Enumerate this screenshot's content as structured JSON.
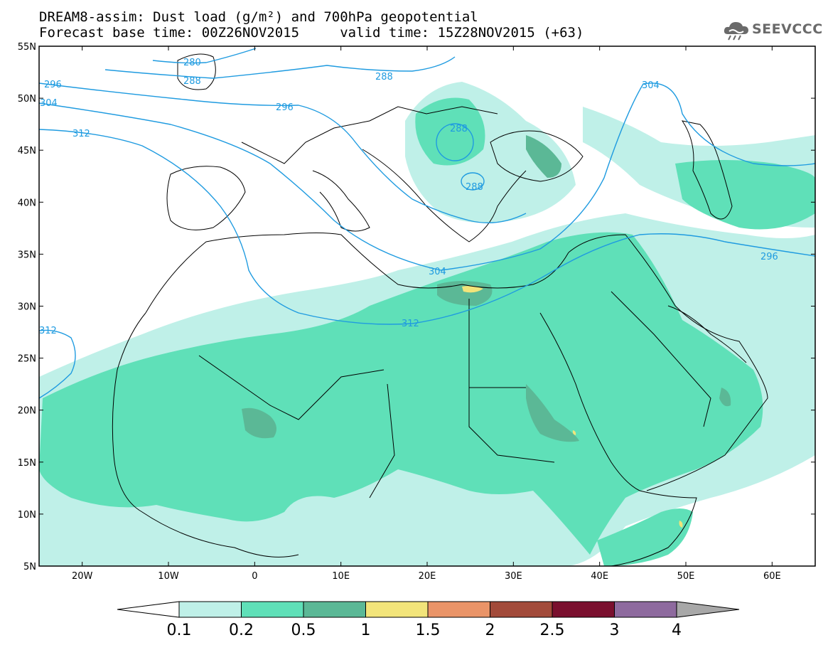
{
  "header": {
    "title_line1": "DREAM8-assim: Dust load (g/m²) and 700hPa geopotential",
    "title_line2": "Forecast base time: 00Z26NOV2015     valid time: 15Z28NOV2015 (+63)",
    "logo_text": "SEEVCCC"
  },
  "map": {
    "lon_range": [
      -25,
      65
    ],
    "lat_range": [
      5,
      55
    ],
    "lat_ticks": [
      "55N",
      "50N",
      "45N",
      "40N",
      "35N",
      "30N",
      "25N",
      "20N",
      "15N",
      "10N",
      "5N"
    ],
    "lon_ticks": [
      "20W",
      "10W",
      "0",
      "10E",
      "20E",
      "30E",
      "40E",
      "50E",
      "60E"
    ],
    "contour_color": "#1f9be0",
    "contour_labels": [
      "280",
      "288",
      "288",
      "296",
      "296",
      "304",
      "304",
      "312",
      "312",
      "312",
      "304",
      "288",
      "288",
      "296"
    ]
  },
  "colorbar": {
    "levels": [
      "0.1",
      "0.2",
      "0.5",
      "1",
      "1.5",
      "2",
      "2.5",
      "3",
      "4"
    ],
    "colors": [
      "#ffffff",
      "#bff0e8",
      "#5fe0b8",
      "#5bb896",
      "#f2e47a",
      "#ea9468",
      "#a24a3a",
      "#7a0f2e",
      "#8e6a9e",
      "#a8a8a8"
    ]
  }
}
